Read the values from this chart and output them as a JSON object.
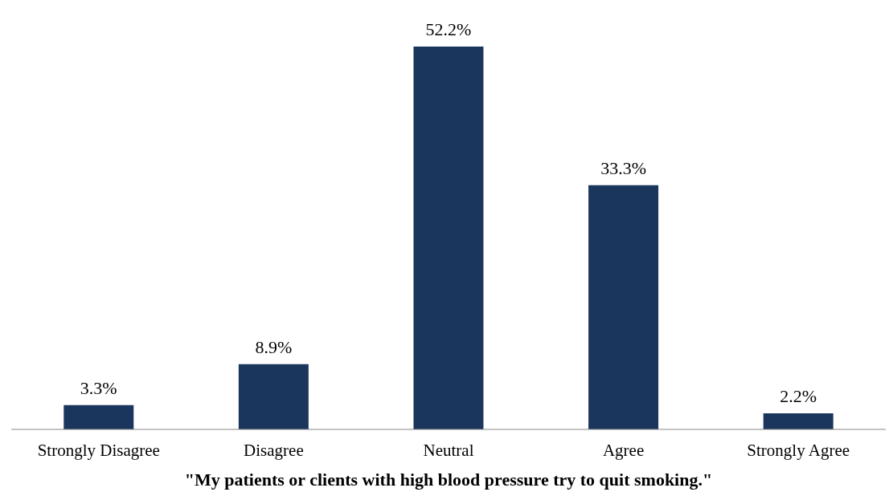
{
  "chart_data": {
    "type": "bar",
    "xlabel": "\"My patients or clients with high blood pressure try to quit smoking.\"",
    "categories": [
      "Strongly Disagree",
      "Disagree",
      "Neutral",
      "Agree",
      "Strongly Agree"
    ],
    "values": [
      3.3,
      8.9,
      52.2,
      33.3,
      2.2
    ],
    "value_labels": [
      "3.3%",
      "8.9%",
      "52.2%",
      "33.3%",
      "2.2%"
    ],
    "color": "#1b365d",
    "tick_labels": "x"
  }
}
